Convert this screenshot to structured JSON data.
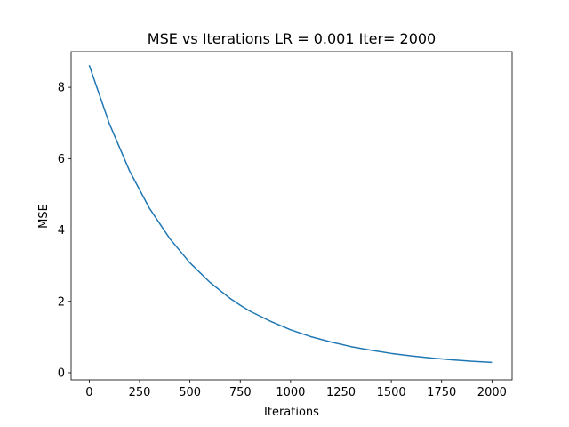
{
  "chart_data": {
    "type": "line",
    "title": "MSE vs Iterations LR = 0.001 Iter= 2000",
    "xlabel": "Iterations",
    "ylabel": "MSE",
    "xlim": [
      -90,
      2100
    ],
    "ylim": [
      -0.2,
      9.0
    ],
    "xticks": [
      0,
      250,
      500,
      750,
      1000,
      1250,
      1500,
      1750,
      2000
    ],
    "xtick_labels": [
      "0",
      "250",
      "500",
      "750",
      "1000",
      "1250",
      "1500",
      "1750",
      "2000"
    ],
    "yticks": [
      0,
      2,
      4,
      6,
      8
    ],
    "ytick_labels": [
      "0",
      "2",
      "4",
      "6",
      "8"
    ],
    "grid": false,
    "legend": "none",
    "series": [
      {
        "color": "#1f77b4",
        "x": [
          0,
          100,
          200,
          300,
          400,
          500,
          600,
          700,
          750,
          800,
          900,
          1000,
          1100,
          1200,
          1300,
          1400,
          1500,
          1600,
          1700,
          1800,
          1900,
          2000
        ],
        "y": [
          8.62,
          6.98,
          5.66,
          4.6,
          3.76,
          3.08,
          2.53,
          2.08,
          1.89,
          1.72,
          1.44,
          1.2,
          1.01,
          0.86,
          0.73,
          0.63,
          0.54,
          0.47,
          0.41,
          0.36,
          0.32,
          0.29
        ]
      }
    ]
  }
}
